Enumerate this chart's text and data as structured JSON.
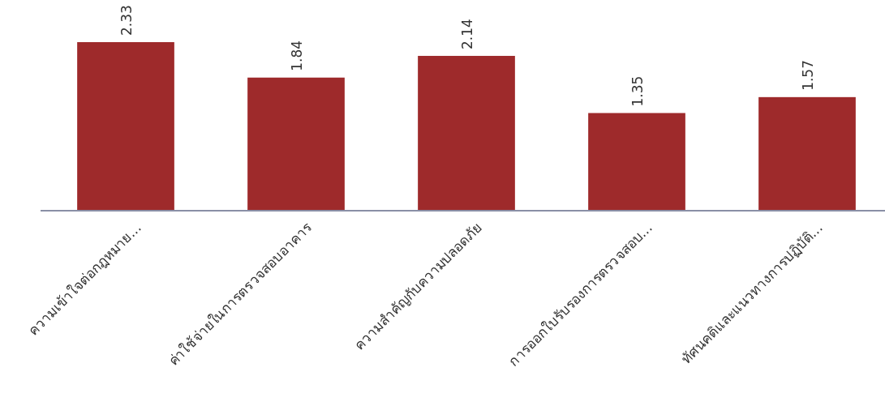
{
  "chart_data": {
    "type": "bar",
    "categories": [
      "ความเข้าใจต่อกฎหมาย...",
      "ค่าใช้จ่ายในการตรวจสอบอาคาร",
      "ความสำคัญกับความปลอดภัย",
      "การออกใบรับรองการตรวจสอบ...",
      "ทัศนคติและแนวทางการปฏิบัติ..."
    ],
    "values": [
      2.33,
      1.84,
      2.14,
      1.35,
      1.57
    ],
    "color": "#9e2a2b",
    "data_labels": true
  }
}
